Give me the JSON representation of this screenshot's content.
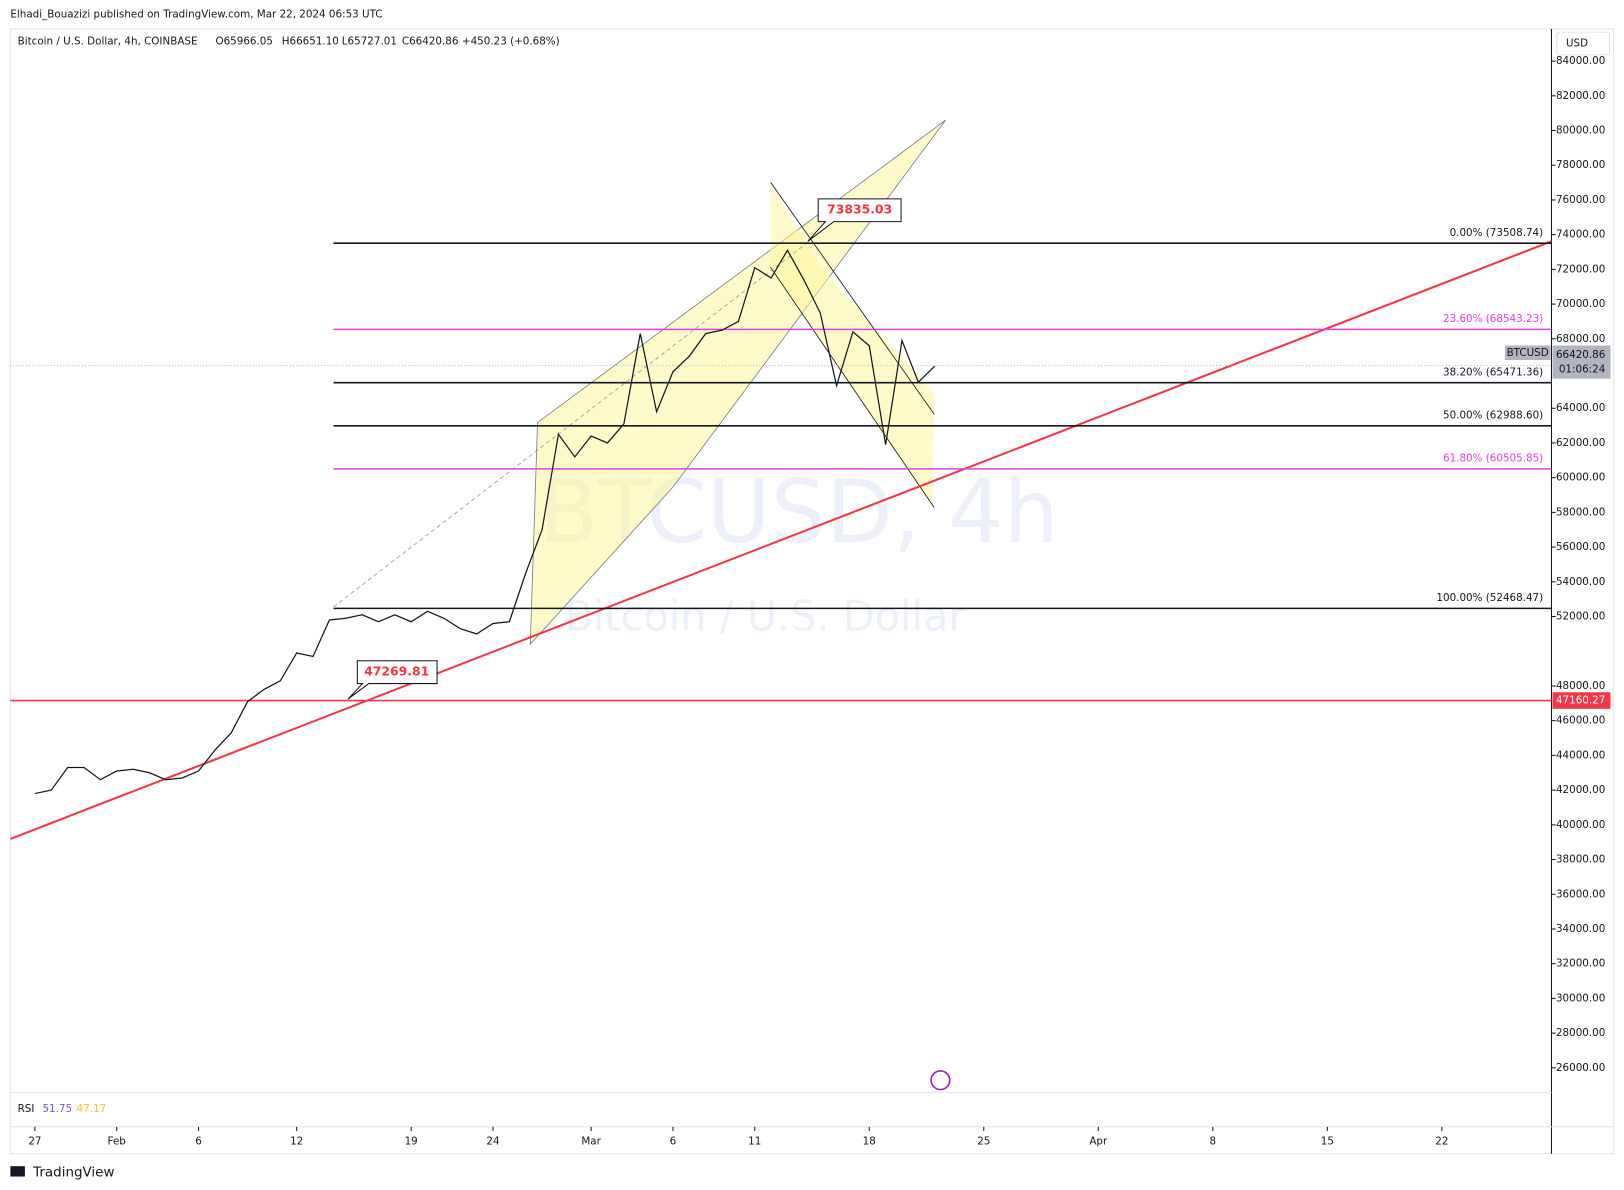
{
  "header": {
    "published": "Elhadi_Bouazizi published on TradingView.com, Mar 22, 2024 06:53 UTC",
    "symbol": "Bitcoin / U.S. Dollar, 4h, COINBASE",
    "open": "O65966.05",
    "high": "H66651.10",
    "low": "L65727.01",
    "close": "C66420.86",
    "change": "+450.23 (+0.68%)"
  },
  "chart_data": {
    "type": "line",
    "color": "#131722",
    "x": [
      0,
      1,
      2,
      3,
      4,
      5,
      6,
      7,
      8,
      9,
      10,
      11,
      12,
      13,
      14,
      15,
      16,
      17,
      18,
      19,
      20,
      21,
      22,
      23,
      24,
      25,
      26,
      27,
      28,
      29,
      30,
      31,
      32,
      33,
      34,
      35,
      36,
      37,
      38,
      39,
      40,
      41,
      42,
      43,
      44,
      45,
      46,
      47,
      48,
      49,
      50,
      51,
      52,
      53,
      54,
      55
    ],
    "values": [
      41800,
      42000,
      43300,
      43300,
      42600,
      43100,
      43200,
      43000,
      42600,
      42700,
      43100,
      44300,
      45300,
      47100,
      47800,
      48300,
      49900,
      49700,
      51800,
      51900,
      52100,
      51700,
      52100,
      51700,
      52300,
      51900,
      51300,
      51000,
      51600,
      51700,
      54500,
      57000,
      62500,
      61200,
      62400,
      62000,
      63100,
      68300,
      63800,
      66100,
      67000,
      68300,
      68500,
      69000,
      72100,
      71500,
      73100,
      71400,
      69500,
      65300,
      68400,
      67600,
      61900,
      67900,
      65500,
      66420.86
    ],
    "xlim": [
      -1.5,
      92.7
    ],
    "ylim": [
      24570,
      85730
    ],
    "xticks": [
      {
        "value": 0,
        "label": "27"
      },
      {
        "value": 5,
        "label": "Feb"
      },
      {
        "value": 10,
        "label": "6"
      },
      {
        "value": 16,
        "label": "12"
      },
      {
        "value": 23,
        "label": "19"
      },
      {
        "value": 28,
        "label": "24"
      },
      {
        "value": 34,
        "label": "Mar"
      },
      {
        "value": 39,
        "label": "6"
      },
      {
        "value": 44,
        "label": "11"
      },
      {
        "value": 51,
        "label": "18"
      },
      {
        "value": 58,
        "label": "25"
      },
      {
        "value": 65,
        "label": "Apr"
      },
      {
        "value": 72,
        "label": "8"
      },
      {
        "value": 79,
        "label": "15"
      },
      {
        "value": 86,
        "label": "22"
      }
    ],
    "yticks": [
      {
        "value": 26000,
        "label": "26000.00"
      },
      {
        "value": 28000,
        "label": "28000.00"
      },
      {
        "value": 30000,
        "label": "30000.00"
      },
      {
        "value": 32000,
        "label": "32000.00"
      },
      {
        "value": 34000,
        "label": "34000.00"
      },
      {
        "value": 36000,
        "label": "36000.00"
      },
      {
        "value": 38000,
        "label": "38000.00"
      },
      {
        "value": 40000,
        "label": "40000.00"
      },
      {
        "value": 42000,
        "label": "42000.00"
      },
      {
        "value": 44000,
        "label": "44000.00"
      },
      {
        "value": 46000,
        "label": "46000.00"
      },
      {
        "value": 48000,
        "label": "48000.00"
      },
      {
        "value": 52000,
        "label": "52000.00"
      },
      {
        "value": 54000,
        "label": "54000.00"
      },
      {
        "value": 56000,
        "label": "56000.00"
      },
      {
        "value": 58000,
        "label": "58000.00"
      },
      {
        "value": 60000,
        "label": "60000.00"
      },
      {
        "value": 62000,
        "label": "62000.00"
      },
      {
        "value": 64000,
        "label": "64000.00"
      },
      {
        "value": 68000,
        "label": "68000.00"
      },
      {
        "value": 70000,
        "label": "70000.00"
      },
      {
        "value": 72000,
        "label": "72000.00"
      },
      {
        "value": 74000,
        "label": "74000.00"
      },
      {
        "value": 76000,
        "label": "76000.00"
      },
      {
        "value": 78000,
        "label": "78000.00"
      },
      {
        "value": 80000,
        "label": "80000.00"
      },
      {
        "value": 82000,
        "label": "82000.00"
      },
      {
        "value": 84000,
        "label": "84000.00"
      }
    ],
    "fib_levels": [
      {
        "label": "0.00% (73508.74)",
        "value": 73508.74,
        "color": "#131722"
      },
      {
        "label": "23.60% (68543.23)",
        "value": 68543.23,
        "color": "#e040e0"
      },
      {
        "label": "38.20% (65471.36)",
        "value": 65471.36,
        "color": "#131722"
      },
      {
        "label": "50.00% (62988.60)",
        "value": 62988.6,
        "color": "#131722"
      },
      {
        "label": "61.80% (60505.85)",
        "value": 60505.85,
        "color": "#e040e0"
      },
      {
        "label": "100.00% (52468.47)",
        "value": 52468.47,
        "color": "#131722"
      }
    ],
    "support": {
      "label": "47160.27",
      "value": 47160.27,
      "color": "#f23645"
    },
    "price_label": {
      "symbol": "BTCUSD",
      "price": "66420.86",
      "timer": "01:06:24"
    },
    "callouts": [
      "73835.03",
      "47269.81"
    ],
    "watermark": [
      "BTCUSD, 4h",
      "Bitcoin / U.S. Dollar"
    ],
    "currency": "USD",
    "rsi": {
      "name": "RSI",
      "v1": "51.75",
      "v2": "47.17"
    }
  },
  "footer": {
    "brand": "TradingView"
  }
}
